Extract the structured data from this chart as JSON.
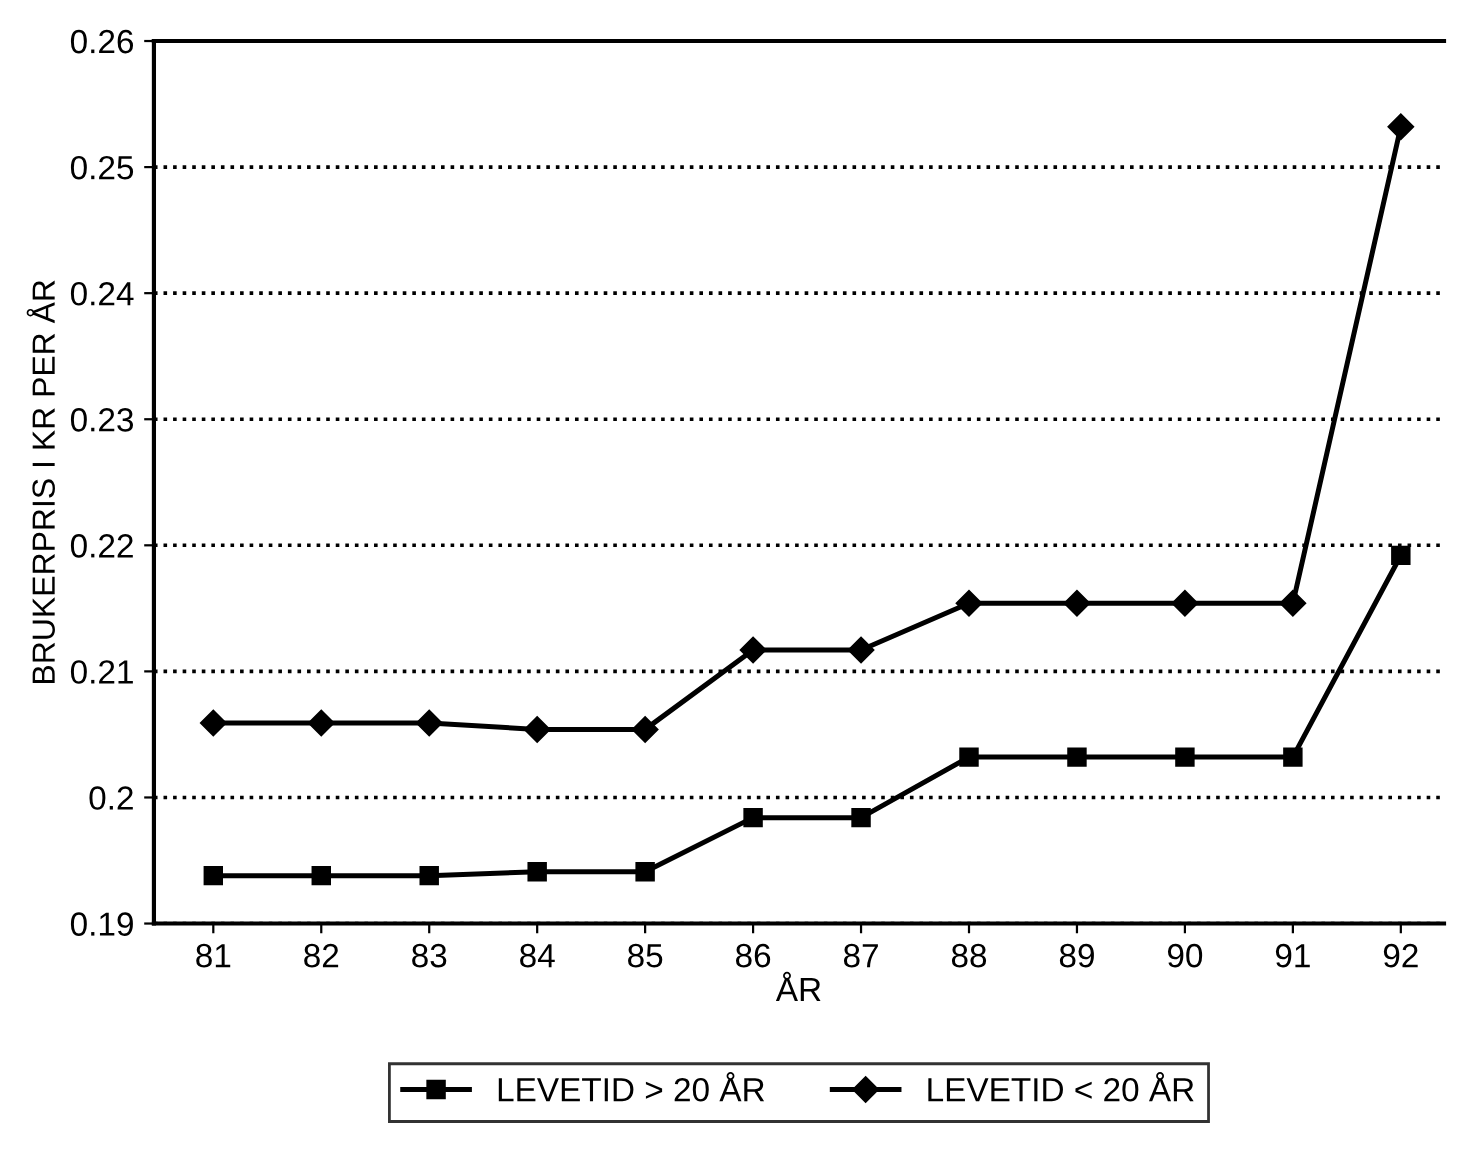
{
  "chart_data": {
    "type": "line",
    "xlabel": "ÅR",
    "ylabel": "BRUKERPRIS I KR PER ÅR",
    "categories": [
      "81",
      "82",
      "83",
      "84",
      "85",
      "86",
      "87",
      "88",
      "89",
      "90",
      "91",
      "92"
    ],
    "series": [
      {
        "name": "LEVETID > 20 ÅR",
        "color": "#000000",
        "marker": "square",
        "values": [
          0.1938,
          0.1938,
          0.1938,
          0.1941,
          0.1941,
          0.1984,
          0.1984,
          0.2032,
          0.2032,
          0.2032,
          0.2032,
          0.2192
        ]
      },
      {
        "name": "LEVETID < 20 ÅR",
        "color": "#000000",
        "marker": "diamond",
        "values": [
          0.2059,
          0.2059,
          0.2059,
          0.2054,
          0.2054,
          0.2117,
          0.2117,
          0.2154,
          0.2154,
          0.2154,
          0.2154,
          0.2532
        ]
      }
    ],
    "ylim": [
      0.19,
      0.26
    ],
    "yticks": [
      0.19,
      0.2,
      0.21,
      0.22,
      0.23,
      0.24,
      0.25,
      0.26
    ],
    "grid": "y",
    "legend": "bottom",
    "line_style": "solid"
  }
}
